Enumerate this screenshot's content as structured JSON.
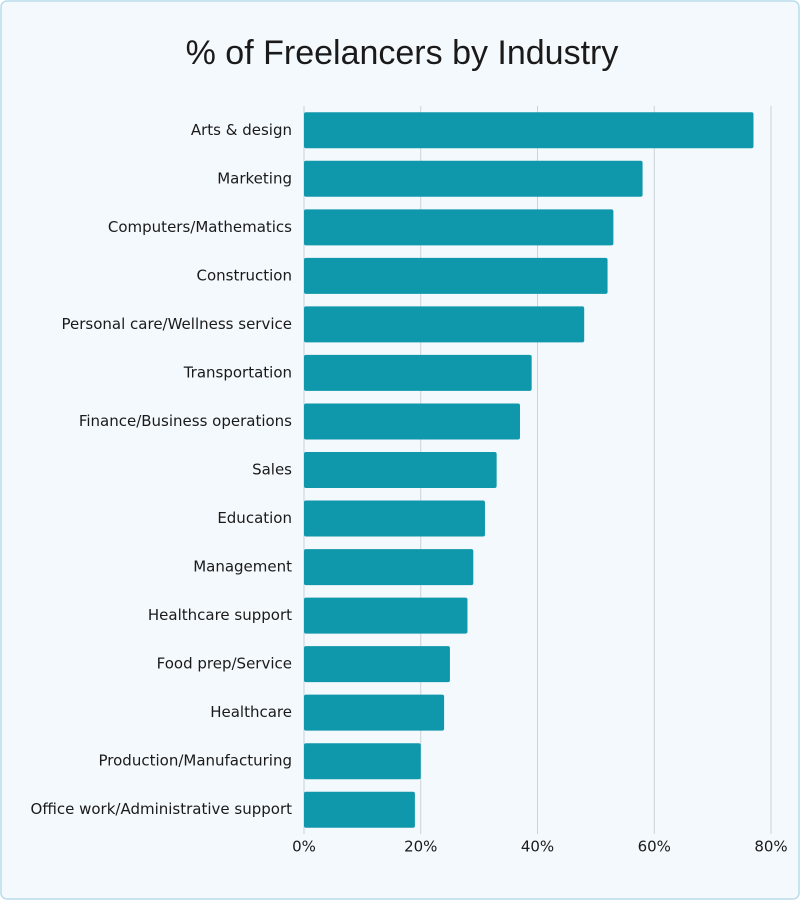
{
  "chart_data": {
    "type": "bar",
    "orientation": "horizontal",
    "title": "% of Freelancers by Industry",
    "categories": [
      "Arts & design",
      "Marketing",
      "Computers/Mathematics",
      "Construction",
      "Personal care/Wellness service",
      "Transportation",
      "Finance/Business operations",
      "Sales",
      "Education",
      "Management",
      "Healthcare support",
      "Food prep/Service",
      "Healthcare",
      "Production/Manufacturing",
      "Office work/Administrative support"
    ],
    "values": [
      77,
      58,
      53,
      52,
      48,
      39,
      37,
      33,
      31,
      29,
      28,
      25,
      24,
      20,
      19
    ],
    "color": "#0f97ab",
    "xlim": [
      0,
      80
    ],
    "xticks": [
      {
        "value": 0,
        "label": "0%"
      },
      {
        "value": 20,
        "label": "20%"
      },
      {
        "value": 40,
        "label": "40%"
      },
      {
        "value": 60,
        "label": "60%"
      },
      {
        "value": 80,
        "label": "80%"
      }
    ],
    "grid": true
  }
}
